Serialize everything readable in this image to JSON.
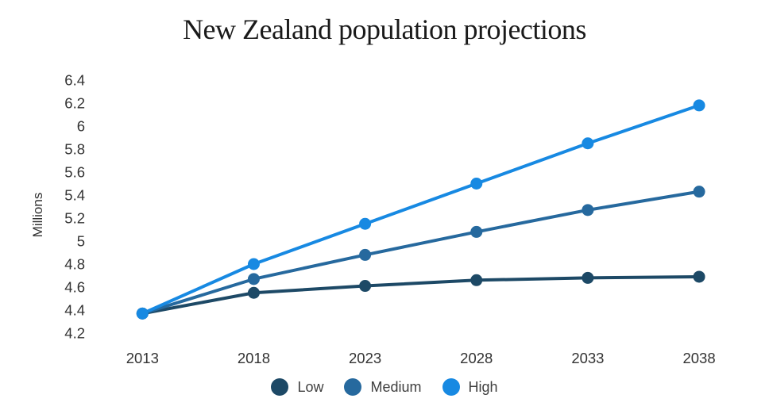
{
  "chart_data": {
    "type": "line",
    "title": "New Zealand population projections",
    "xlabel": "",
    "ylabel": "Millions",
    "categories": [
      "2013",
      "2018",
      "2023",
      "2028",
      "2033",
      "2038"
    ],
    "series": [
      {
        "name": "Low",
        "color": "#1d4966",
        "values": [
          4.37,
          4.55,
          4.61,
          4.66,
          4.68,
          4.69
        ]
      },
      {
        "name": "Medium",
        "color": "#26699e",
        "values": [
          4.37,
          4.67,
          4.88,
          5.08,
          5.27,
          5.43
        ]
      },
      {
        "name": "High",
        "color": "#1789e2",
        "values": [
          4.37,
          4.8,
          5.15,
          5.5,
          5.85,
          6.18
        ]
      }
    ],
    "ylim": [
      4.2,
      6.4
    ],
    "yticks": [
      "6.4",
      "6.2",
      "6",
      "5.8",
      "5.6",
      "5.4",
      "5.2",
      "5",
      "4.8",
      "4.6",
      "4.4",
      "4.2"
    ],
    "grid": false,
    "legend_position": "bottom",
    "marker": "circle",
    "text_color": "#333333",
    "background_color": "#ffffff"
  }
}
